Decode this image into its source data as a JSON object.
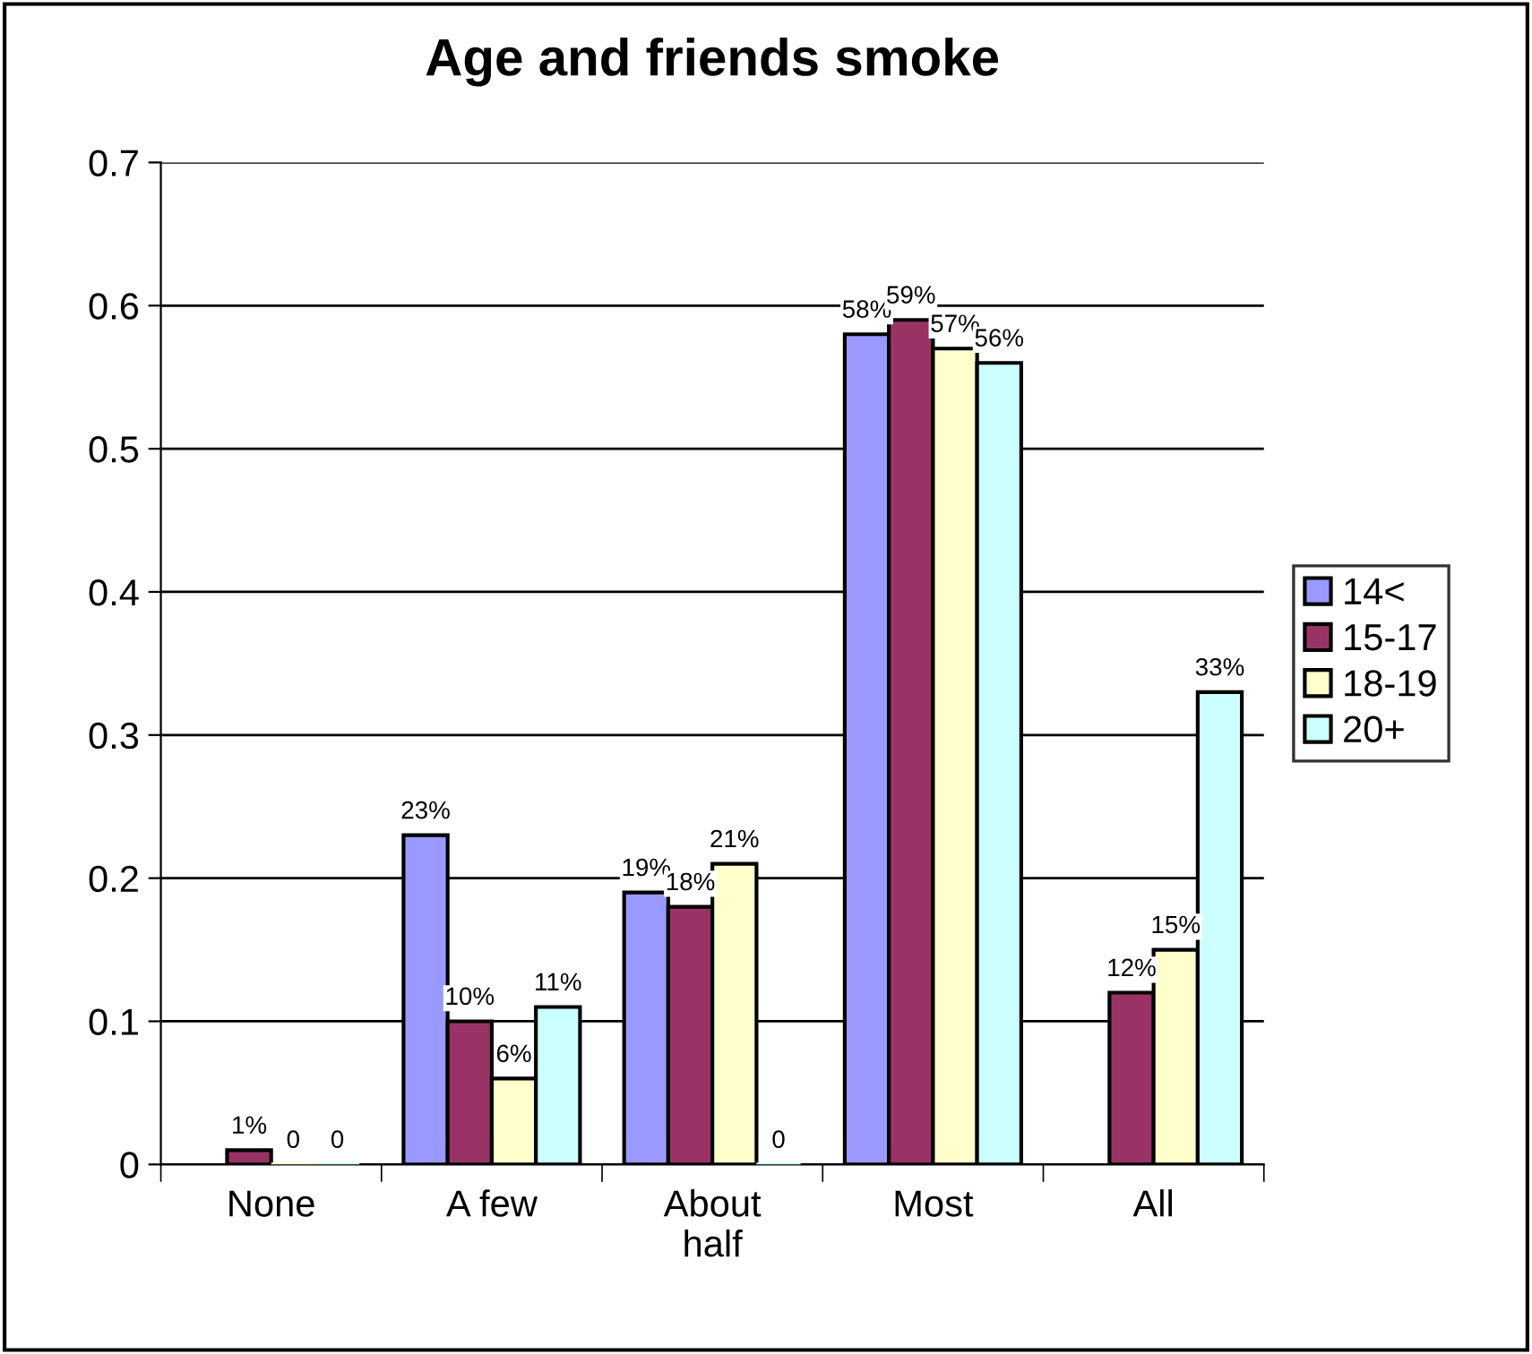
{
  "chart_data": {
    "type": "bar",
    "title": "Age and friends smoke",
    "categories": [
      "None",
      "A few",
      "About\nhalf",
      "Most",
      "All"
    ],
    "series": [
      {
        "name": "14<",
        "color": "#9999ff",
        "values": [
          null,
          0.23,
          0.19,
          0.58,
          null
        ],
        "value_labels": [
          null,
          "23%",
          "19%",
          "58%",
          null
        ]
      },
      {
        "name": "15-17",
        "color": "#993366",
        "values": [
          0.01,
          0.1,
          0.18,
          0.59,
          0.12
        ],
        "value_labels": [
          "1%",
          "10%",
          "18%",
          "59%",
          "12%"
        ]
      },
      {
        "name": "18-19",
        "color": "#ffffcc",
        "values": [
          0,
          0.06,
          0.21,
          0.57,
          0.15
        ],
        "value_labels": [
          "0",
          "6%",
          "21%",
          "57%",
          "15%"
        ]
      },
      {
        "name": "20+",
        "color": "#ccffff",
        "values": [
          0,
          0.11,
          0,
          0.56,
          0.33
        ],
        "value_labels": [
          "0",
          "11%",
          "0",
          "56%",
          "33%"
        ]
      }
    ],
    "ylim": [
      0,
      0.7
    ],
    "yticks": [
      0,
      0.1,
      0.2,
      0.3,
      0.4,
      0.5,
      0.6,
      0.7
    ],
    "grid": "y",
    "legend": "right"
  }
}
